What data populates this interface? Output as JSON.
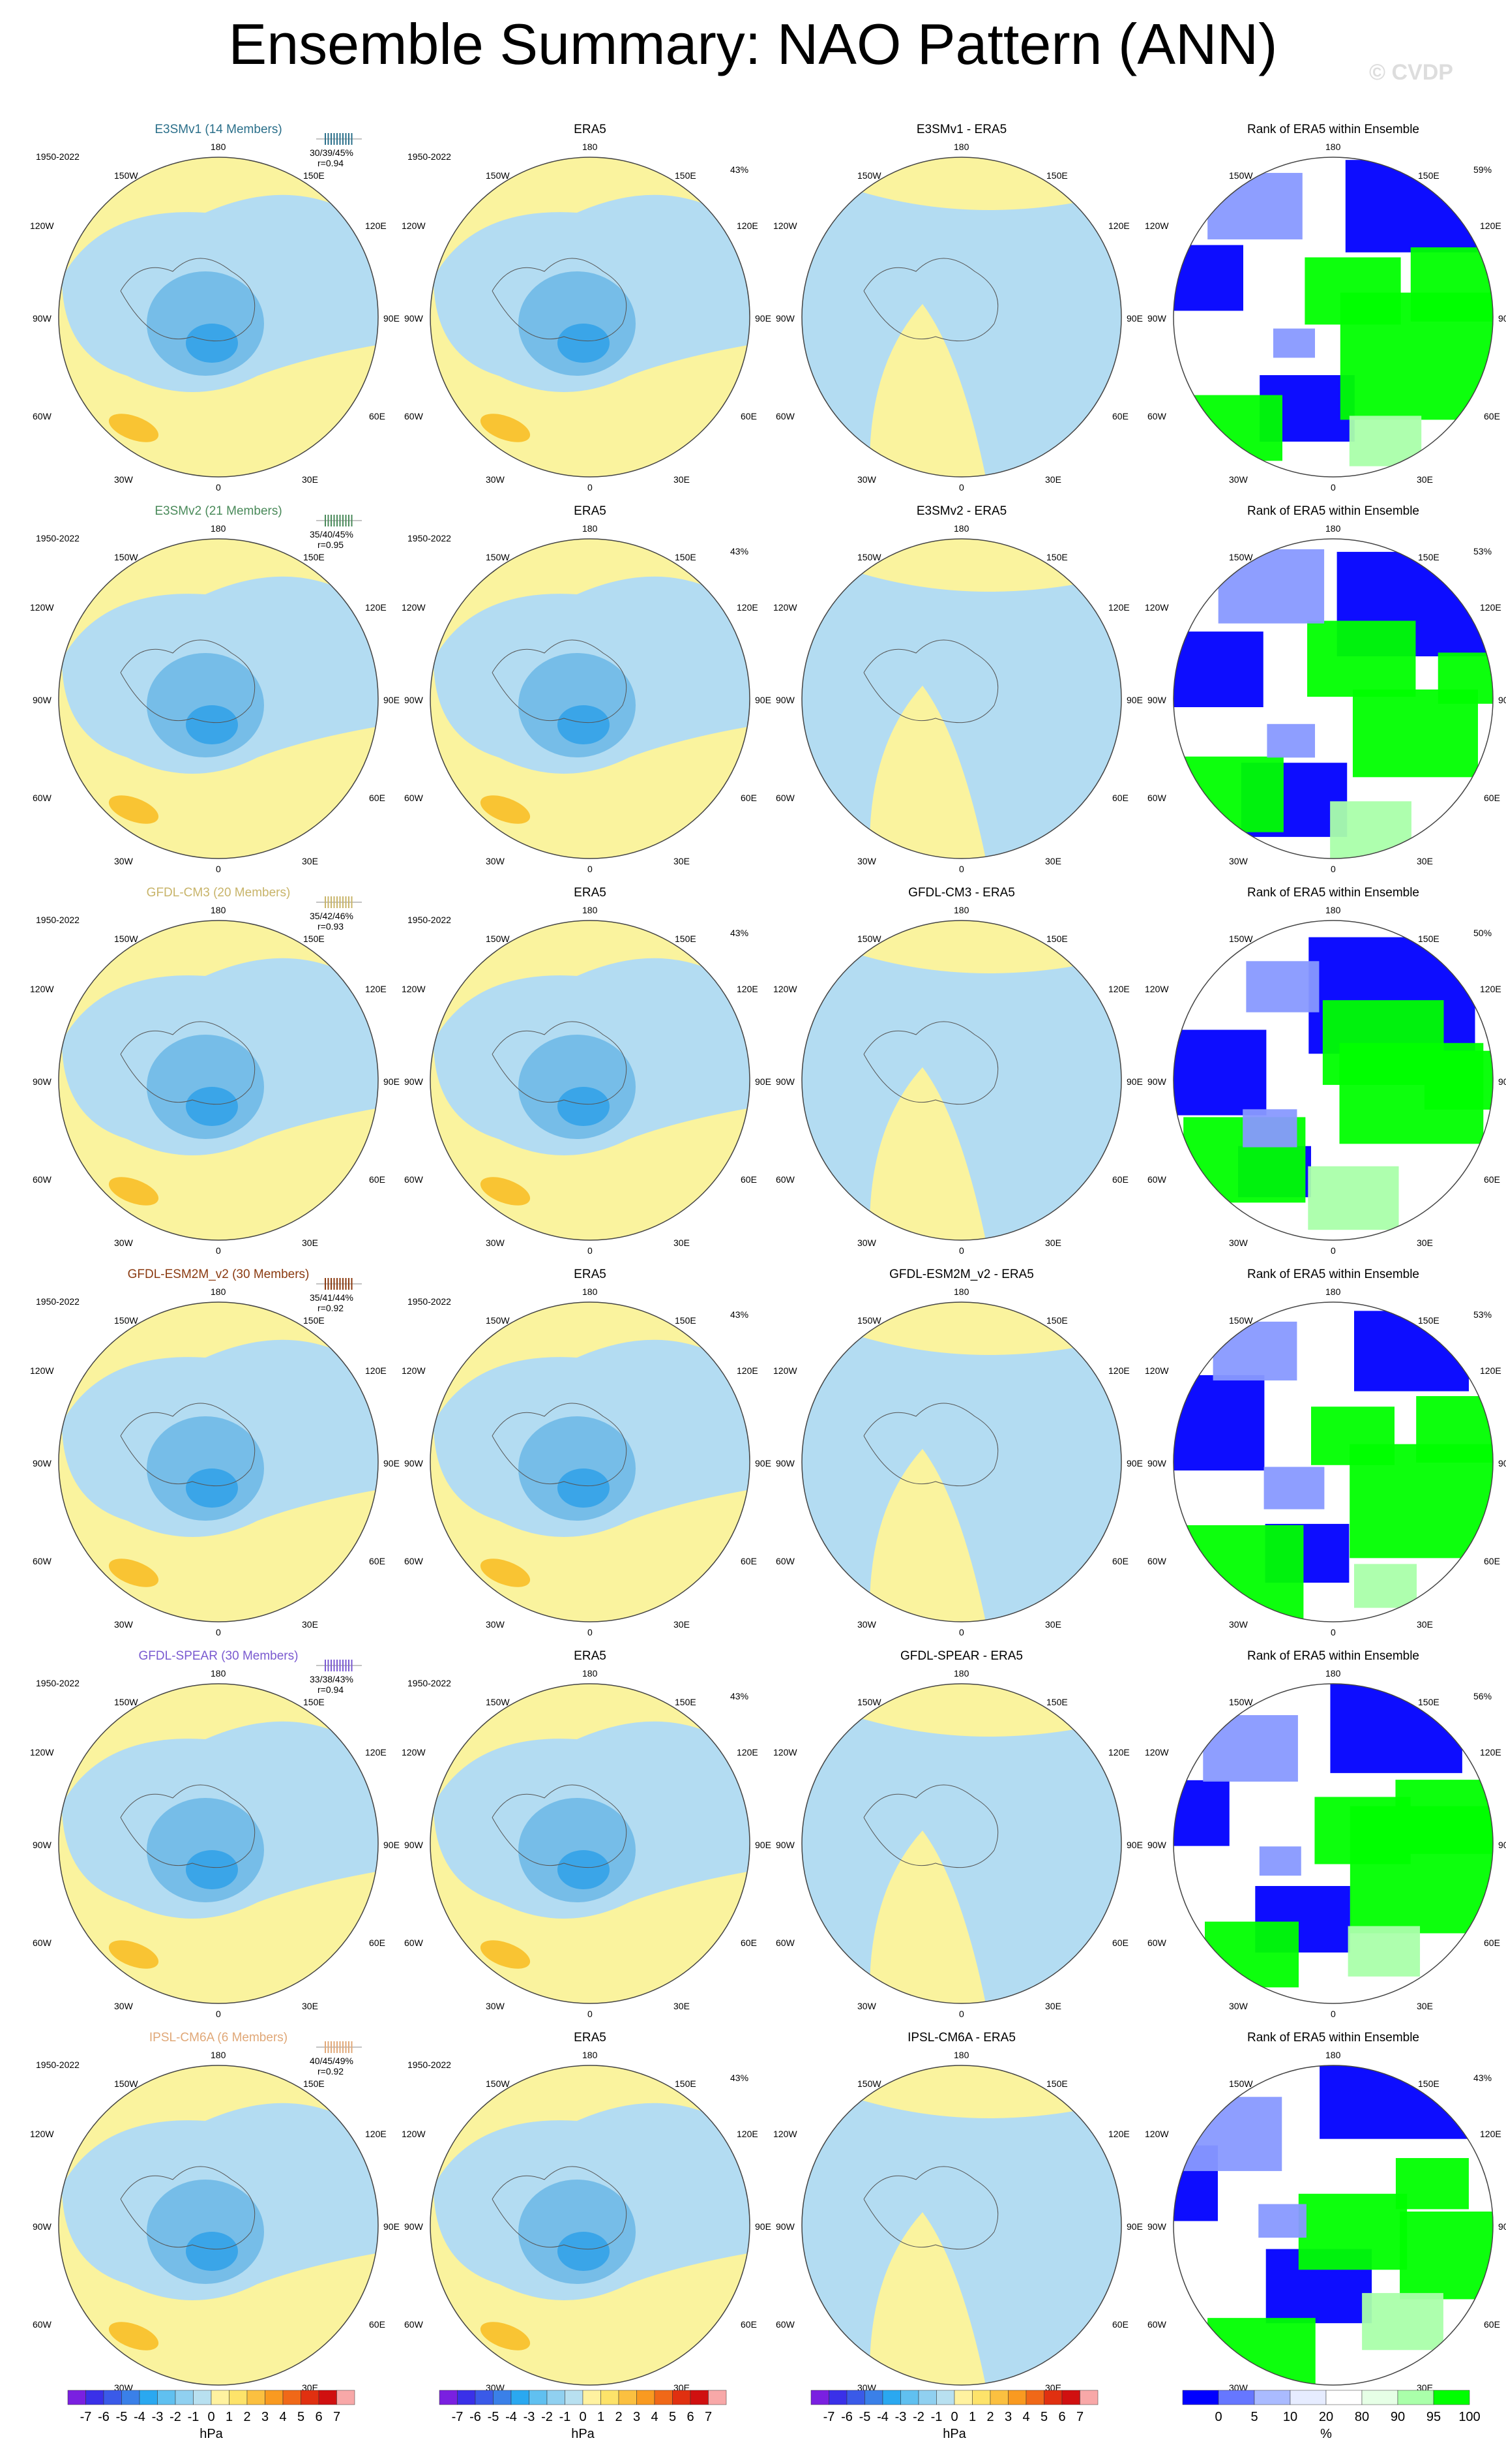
{
  "title": "Ensemble Summary: NAO Pattern (ANN)",
  "credit": "© CVDP",
  "colors": {
    "ocean_yellow": "#faf39e",
    "light_blue": "#b3dcf2",
    "mid_blue": "#76bde8",
    "dark_blue": "#3aa5e8",
    "orange": "#f9c433",
    "rank_blue": "#0000ff",
    "rank_light_blue": "#8899ff",
    "rank_pale": "#dde8ff",
    "rank_green": "#00ff00",
    "rank_light_green": "#aaffaa"
  },
  "lon_labels": {
    "n180": "180",
    "e150": "150E",
    "e120": "120E",
    "e90": "90E",
    "e60": "60E",
    "e30": "30E",
    "zero": "0",
    "w30": "30W",
    "w60": "60W",
    "w90": "90W",
    "w120": "120W",
    "w150": "150W"
  },
  "rows": [
    {
      "model": "E3SMv1 (14 Members)",
      "model_color": "#2a6f8a",
      "years": "1950-2022",
      "stats": "30/39/45%",
      "corr": "r=0.94",
      "era5_pct": "43%",
      "diff_title": "E3SMv1 - ERA5",
      "rank_title": "Rank of ERA5 within Ensemble",
      "rank_pct": "59%"
    },
    {
      "model": "E3SMv2 (21 Members)",
      "model_color": "#4a8a5a",
      "years": "1950-2022",
      "stats": "35/40/45%",
      "corr": "r=0.95",
      "era5_pct": "43%",
      "diff_title": "E3SMv2 - ERA5",
      "rank_title": "Rank of ERA5 within Ensemble",
      "rank_pct": "53%"
    },
    {
      "model": "GFDL-CM3 (20 Members)",
      "model_color": "#c8b46a",
      "years": "1950-2022",
      "stats": "35/42/46%",
      "corr": "r=0.93",
      "era5_pct": "43%",
      "diff_title": "GFDL-CM3 - ERA5",
      "rank_title": "Rank of ERA5 within Ensemble",
      "rank_pct": "50%"
    },
    {
      "model": "GFDL-ESM2M_v2 (30 Members)",
      "model_color": "#8a3a10",
      "years": "1950-2022",
      "stats": "35/41/44%",
      "corr": "r=0.92",
      "era5_pct": "43%",
      "diff_title": "GFDL-ESM2M_v2 - ERA5",
      "rank_title": "Rank of ERA5 within Ensemble",
      "rank_pct": "53%"
    },
    {
      "model": "GFDL-SPEAR (30 Members)",
      "model_color": "#7a5ad0",
      "years": "1950-2022",
      "stats": "33/38/43%",
      "corr": "r=0.94",
      "era5_pct": "43%",
      "diff_title": "GFDL-SPEAR - ERA5",
      "rank_title": "Rank of ERA5 within Ensemble",
      "rank_pct": "56%"
    },
    {
      "model": "IPSL-CM6A (6 Members)",
      "model_color": "#e0a878",
      "years": "1950-2022",
      "stats": "40/45/49%",
      "corr": "r=0.92",
      "era5_pct": "43%",
      "diff_title": "IPSL-CM6A - ERA5",
      "rank_title": "Rank of ERA5 within Ensemble",
      "rank_pct": "43%"
    }
  ],
  "era5_title": "ERA5",
  "colorbars": {
    "hpa": {
      "ticks": [
        "-7",
        "-6",
        "-5",
        "-4",
        "-3",
        "-2",
        "-1",
        "0",
        "1",
        "2",
        "3",
        "4",
        "5",
        "6",
        "7"
      ],
      "unit": "hPa",
      "colors": [
        "#7a20e0",
        "#3a30e8",
        "#3a5ae8",
        "#3a80e8",
        "#2aa8f0",
        "#60c0f0",
        "#90d0f0",
        "#b8e0f0",
        "#fff2a0",
        "#fde36a",
        "#fbc040",
        "#f99a20",
        "#f06818",
        "#e03010",
        "#d01010",
        "#f8a8a8"
      ]
    },
    "rank": {
      "ticks": [
        "0",
        "5",
        "10",
        "20",
        "80",
        "90",
        "95",
        "100"
      ],
      "unit": "%",
      "colors": [
        "#0000ff",
        "#6677ff",
        "#aabbff",
        "#e6ecff",
        "#ffffff",
        "#e6ffe6",
        "#aaffaa",
        "#00ff00"
      ]
    }
  }
}
